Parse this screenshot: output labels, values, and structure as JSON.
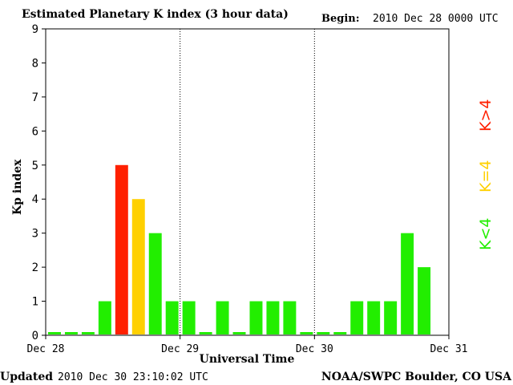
{
  "header": {
    "title": "Estimated Planetary K index (3 hour data)",
    "begin_label": "Begin:",
    "begin_value": "2010 Dec 28 0000 UTC"
  },
  "footer": {
    "updated_label": "Updated",
    "updated_value": "2010 Dec 30 23:10:02 UTC",
    "source": "NOAA/SWPC Boulder, CO USA"
  },
  "legend": {
    "high": "K>4",
    "equal": "K=4",
    "low": "K<4"
  },
  "colors": {
    "high": "#ff2000",
    "equal": "#ffd000",
    "low": "#22ee00",
    "zero": "#22ee00"
  },
  "chart_data": {
    "type": "bar",
    "title": "Estimated Planetary K index (3 hour data)",
    "xlabel": "Universal Time",
    "ylabel": "Kp index",
    "ylim": [
      0,
      9
    ],
    "yticks": [
      0,
      1,
      2,
      3,
      4,
      5,
      6,
      7,
      8,
      9
    ],
    "xticks": [
      "Dec 28",
      "Dec 29",
      "Dec 30",
      "Dec 31"
    ],
    "day_separators_dotted": true,
    "intervals_per_day": 8,
    "values": [
      0,
      0,
      0,
      1,
      5,
      4,
      3,
      1,
      1,
      0,
      1,
      0,
      1,
      1,
      1,
      0,
      0,
      0,
      1,
      1,
      1,
      3,
      2
    ]
  }
}
